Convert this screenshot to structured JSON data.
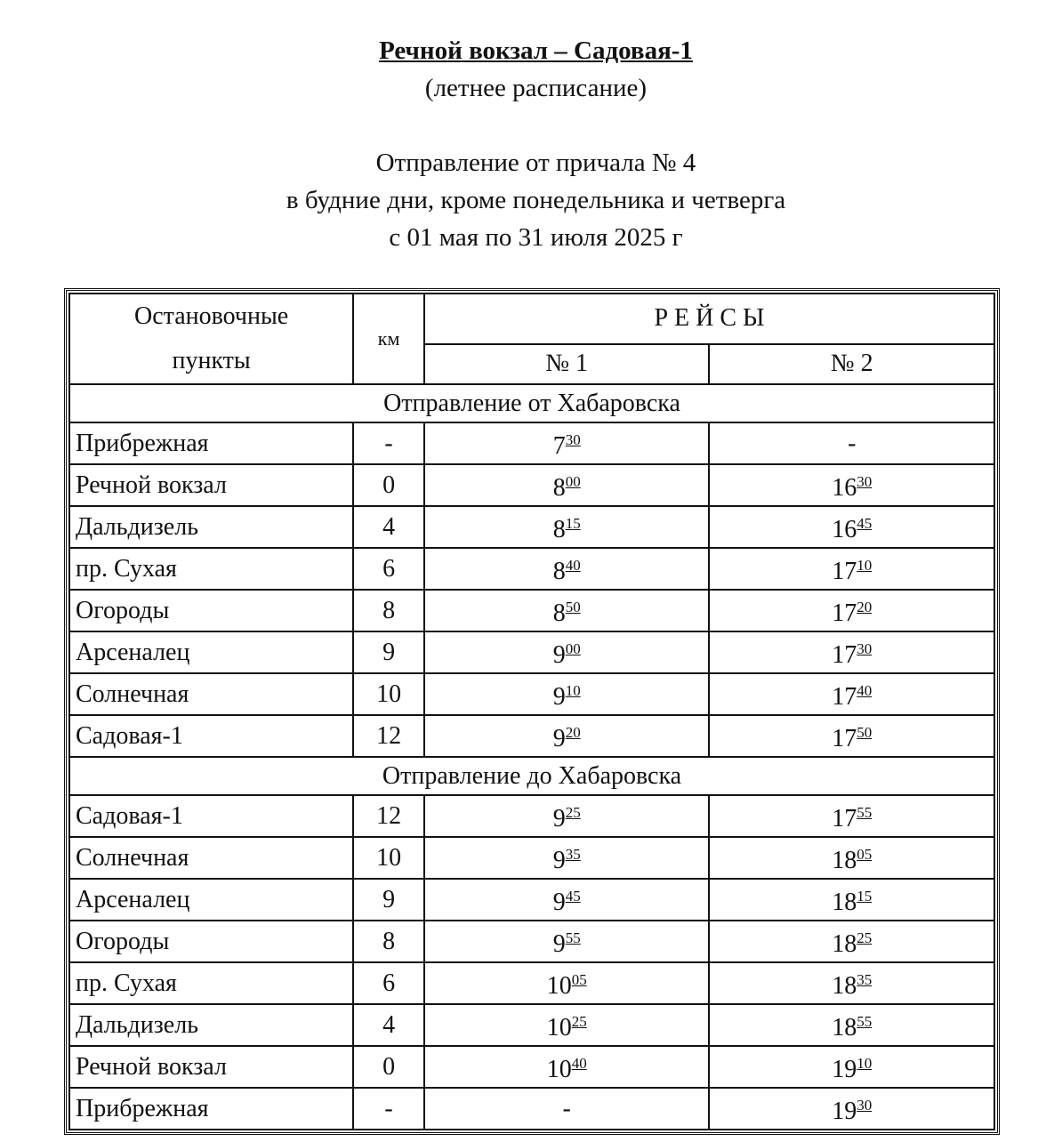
{
  "header": {
    "title": "Речной вокзал – Садовая-1",
    "subtitle": "(летнее расписание)",
    "line1": "Отправление от причала № 4",
    "line2": "в будние дни, кроме понедельника и четверга",
    "line3": "с 01 мая по 31 июля 2025 г"
  },
  "table": {
    "col_stops": "Остановочные пункты",
    "col_stops_1": "Остановочные",
    "col_stops_2": "пункты",
    "col_km": "км",
    "col_trips": "Р Е Й С Ы",
    "trip1": "№ 1",
    "trip2": "№ 2",
    "sections": [
      {
        "title": "Отправление от Хабаровска",
        "rows": [
          {
            "stop": "Прибрежная",
            "km": "-",
            "t1": [
              "7",
              "30"
            ],
            "t2": "-"
          },
          {
            "stop": "Речной вокзал",
            "km": "0",
            "t1": [
              "8",
              "00"
            ],
            "t2": [
              "16",
              "30"
            ]
          },
          {
            "stop": "Дальдизель",
            "km": "4",
            "t1": [
              "8",
              "15"
            ],
            "t2": [
              "16",
              "45"
            ]
          },
          {
            "stop": "пр. Сухая",
            "km": "6",
            "t1": [
              "8",
              "40"
            ],
            "t2": [
              "17",
              "10"
            ]
          },
          {
            "stop": "Огороды",
            "km": "8",
            "t1": [
              "8",
              "50"
            ],
            "t2": [
              "17",
              "20"
            ]
          },
          {
            "stop": "Арсеналец",
            "km": "9",
            "t1": [
              "9",
              "00"
            ],
            "t2": [
              "17",
              "30"
            ]
          },
          {
            "stop": "Солнечная",
            "km": "10",
            "t1": [
              "9",
              "10"
            ],
            "t2": [
              "17",
              "40"
            ]
          },
          {
            "stop": "Садовая-1",
            "km": "12",
            "t1": [
              "9",
              "20"
            ],
            "t2": [
              "17",
              "50"
            ]
          }
        ]
      },
      {
        "title": "Отправление до Хабаровска",
        "rows": [
          {
            "stop": "Садовая-1",
            "km": "12",
            "t1": [
              "9",
              "25"
            ],
            "t2": [
              "17",
              "55"
            ]
          },
          {
            "stop": "Солнечная",
            "km": "10",
            "t1": [
              "9",
              "35"
            ],
            "t2": [
              "18",
              "05"
            ]
          },
          {
            "stop": "Арсеналец",
            "km": "9",
            "t1": [
              "9",
              "45"
            ],
            "t2": [
              "18",
              "15"
            ]
          },
          {
            "stop": "Огороды",
            "km": "8",
            "t1": [
              "9",
              "55"
            ],
            "t2": [
              "18",
              "25"
            ]
          },
          {
            "stop": "пр. Сухая",
            "km": "6",
            "t1": [
              "10",
              "05"
            ],
            "t2": [
              "18",
              "35"
            ]
          },
          {
            "stop": "Дальдизель",
            "km": "4",
            "t1": [
              "10",
              "25"
            ],
            "t2": [
              "18",
              "55"
            ]
          },
          {
            "stop": "Речной вокзал",
            "km": "0",
            "t1": [
              "10",
              "40"
            ],
            "t2": [
              "19",
              "10"
            ]
          },
          {
            "stop": "Прибрежная",
            "km": "-",
            "t1": "-",
            "t2": [
              "19",
              "30"
            ]
          }
        ]
      }
    ]
  }
}
